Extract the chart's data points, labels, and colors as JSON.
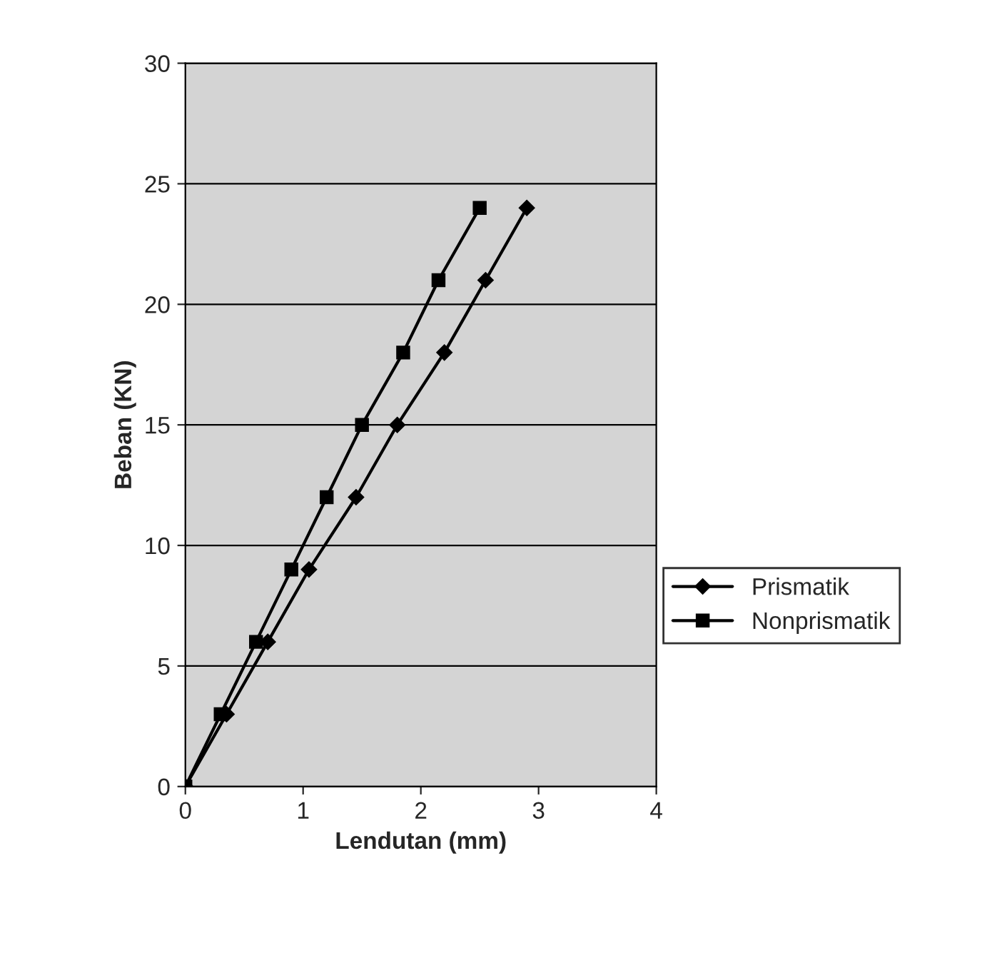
{
  "chart_data": {
    "type": "line",
    "xlabel": "Lendutan (mm)",
    "ylabel": "Beban (KN)",
    "xlim": [
      0,
      4
    ],
    "xticks": [
      0,
      1,
      2,
      3,
      4
    ],
    "ylim": [
      0,
      30
    ],
    "yticks": [
      0,
      5,
      10,
      15,
      20,
      25,
      30
    ],
    "grid": "y",
    "legend": "right",
    "line_style": "solid",
    "series": [
      {
        "name": "Prismatik",
        "color": "#000000",
        "marker": "diamond",
        "x": [
          0,
          0.35,
          0.7,
          1.05,
          1.45,
          1.8,
          2.2,
          2.55,
          2.9
        ],
        "values": [
          0,
          3,
          6,
          9,
          12,
          15,
          18,
          21,
          24
        ]
      },
      {
        "name": "Nonprismatik",
        "color": "#000000",
        "marker": "square",
        "x": [
          0,
          0.3,
          0.6,
          0.9,
          1.2,
          1.5,
          1.85,
          2.15,
          2.5
        ],
        "values": [
          0,
          3,
          6,
          9,
          12,
          15,
          18,
          21,
          24
        ]
      }
    ]
  }
}
